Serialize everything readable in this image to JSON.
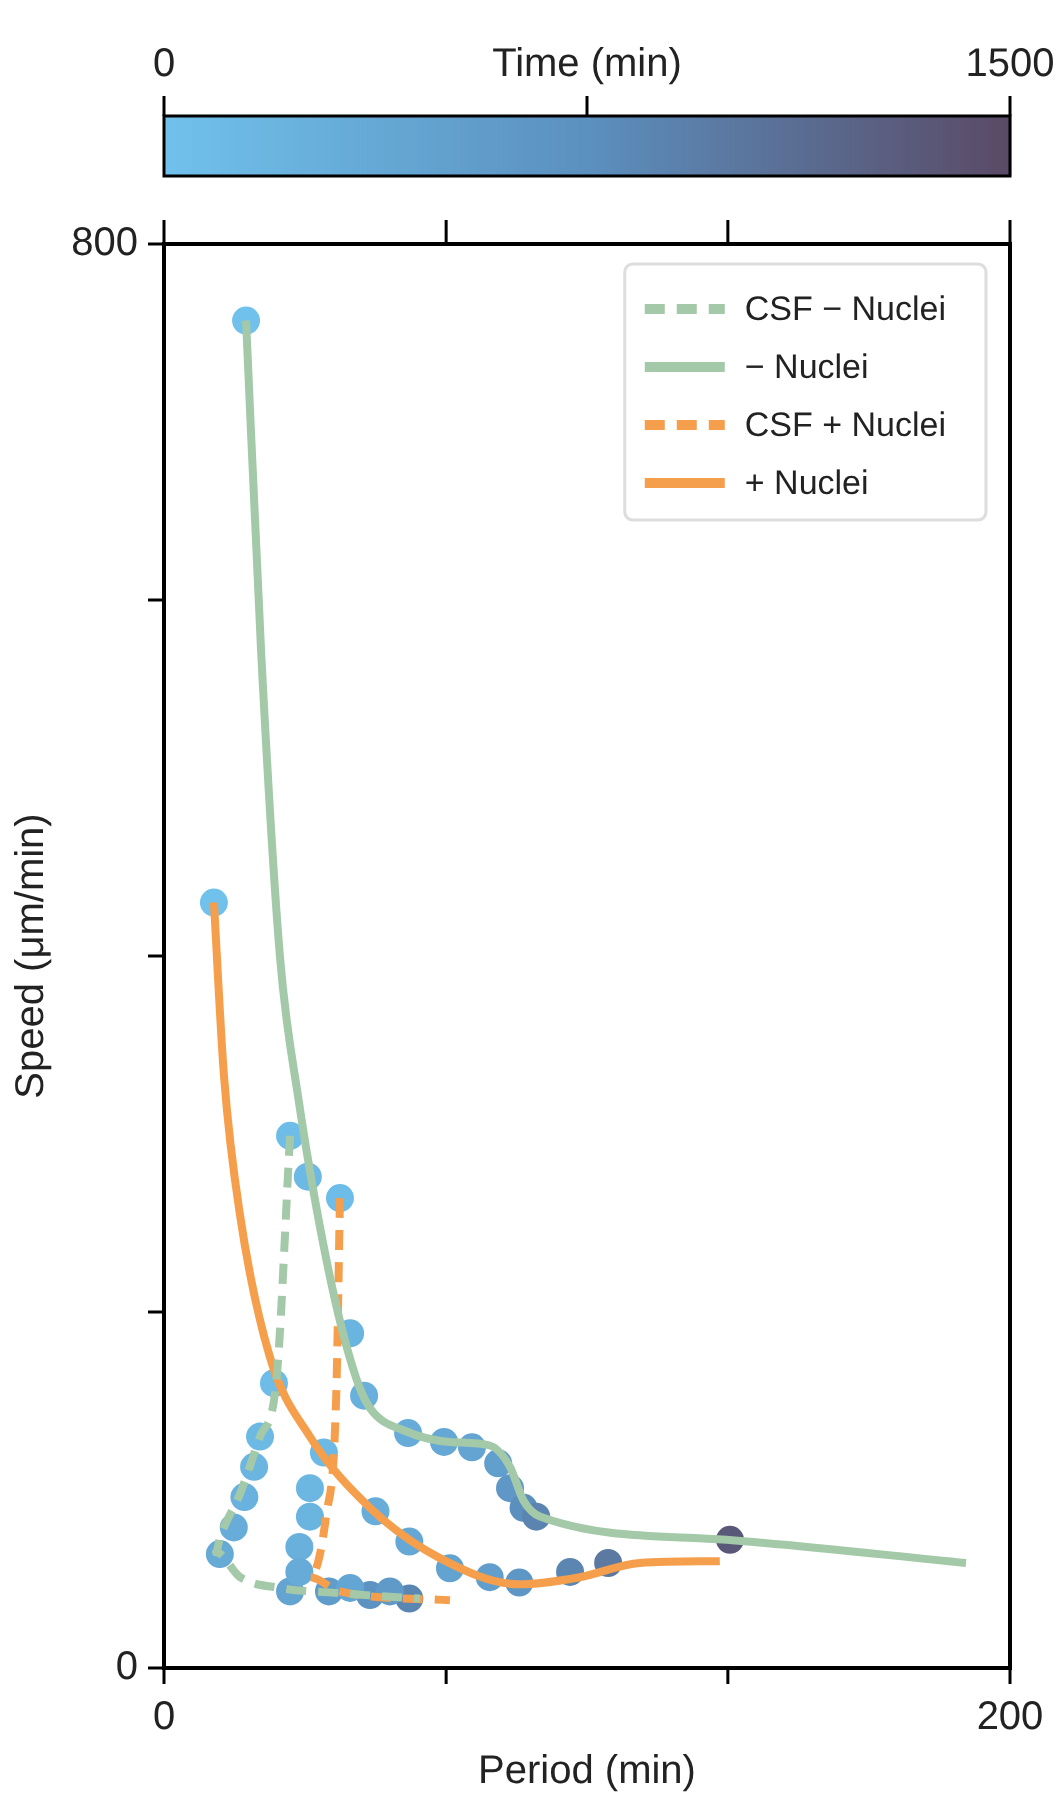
{
  "chart_data": {
    "type": "line",
    "xlabel": "Period (min)",
    "ylabel": "Speed (μm/min)",
    "clabel": "Time (min)",
    "clim": [
      0,
      1500
    ],
    "cticks": [
      0,
      {
        "value": 750,
        "label": null
      },
      1500
    ],
    "xlim": [
      0,
      200
    ],
    "xticks": [
      0,
      {
        "value": 66.7,
        "label": null
      },
      {
        "value": 133.3,
        "label": null
      },
      200
    ],
    "ylim": [
      0,
      800
    ],
    "yticks": [
      0,
      {
        "value": 200,
        "label": null
      },
      {
        "value": 400,
        "label": null
      },
      {
        "value": 600,
        "label": null
      },
      800
    ],
    "grid": false,
    "legend": "top right",
    "series": [
      {
        "type": "scatter",
        "marker": "circle",
        "x": [
          19.4,
          29.8,
          34,
          44,
          47.3,
          57.7,
          66.2,
          72.8,
          79,
          81.8,
          85,
          88,
          133.8,
          26,
          22.7,
          21.3,
          19,
          16.5,
          13.2,
          29.8,
          39,
          48.7,
          58,
          11.8,
          41.6,
          37.8,
          34.5,
          34.5,
          32,
          32,
          50,
          58,
          67.6,
          77,
          84,
          96,
          105,
          44,
          53.4
        ],
        "values": [
          757,
          299,
          276,
          188,
          153,
          132,
          127,
          124,
          115,
          101,
          90,
          85,
          72,
          160,
          130,
          113,
          96,
          79,
          64,
          43,
          43,
          41,
          39,
          430,
          264,
          121,
          101,
          85,
          68,
          54,
          88,
          71,
          56,
          51,
          48,
          54,
          59,
          45,
          43
        ],
        "colors": [
          "#70c1ec",
          "#6ebde8",
          "#6db9e5",
          "#6ab4e0",
          "#69b0dc",
          "#67acd9",
          "#65a8d5",
          "#64a4d2",
          "#619fcd",
          "#5f98c7",
          "#5b8fbe",
          "#5b84b0",
          "#5a5878",
          "#6ebce7",
          "#6cb9e4",
          "#6bb5e1",
          "#69b1de",
          "#68adda",
          "#66aad6",
          "#63a4d1",
          "#609cca",
          "#5c93c2",
          "#5b86b2",
          "#70c1ec",
          "#6ebde8",
          "#6db9e5",
          "#6cb7e2",
          "#6ab4e0",
          "#69b0dc",
          "#67acd9",
          "#68adda",
          "#65a8d5",
          "#63a3d0",
          "#619ecc",
          "#5e97c6",
          "#5b86b2",
          "#5b79a1",
          "#64a6d3",
          "#5f9ac8"
        ],
        "cvalues": [
          0,
          60,
          120,
          200,
          260,
          320,
          380,
          440,
          520,
          620,
          760,
          880,
          1350,
          80,
          130,
          180,
          240,
          300,
          360,
          450,
          560,
          700,
          860,
          0,
          60,
          120,
          160,
          200,
          260,
          320,
          300,
          380,
          460,
          540,
          640,
          860,
          1000,
          420,
          600
        ]
      },
      {
        "name": "CSF − Nuclei",
        "color": "#a3c9a8",
        "line_style": "dashed",
        "x": [
          29.8,
          26.5,
          22.7,
          18,
          13.2,
          12.3,
          18,
          27.4,
          41.6,
          60.5
        ],
        "values": [
          299,
          160,
          130,
          98,
          73,
          65,
          51,
          45,
          42,
          39
        ]
      },
      {
        "name": "− Nuclei",
        "color": "#a3c9a8",
        "line_style": "solid",
        "x": [
          19.4,
          23,
          27.4,
          31.7,
          39.2,
          45.4,
          48.7,
          57.2,
          67.6,
          77,
          81.8,
          85,
          89,
          133,
          189.6
        ],
        "values": [
          757,
          569,
          400,
          321,
          220,
          163,
          146,
          133,
          127,
          125,
          113,
          94,
          85,
          72,
          59
        ]
      },
      {
        "name": "CSF + Nuclei",
        "color": "#f59e4c",
        "line_style": "dashed",
        "x": [
          41.6,
          40.7,
          38.3,
          34.5,
          41.6,
          67.6
        ],
        "values": [
          264,
          152,
          85,
          51,
          43,
          38
        ]
      },
      {
        "name": "+ Nuclei",
        "color": "#f59e4c",
        "line_style": "solid",
        "x": [
          11.8,
          14.2,
          18,
          25,
          34.5,
          48.7,
          65,
          84,
          98.3,
          112.5,
          131.4
        ],
        "values": [
          430,
          332,
          254,
          175,
          130,
          90,
          62,
          47,
          51,
          59,
          60
        ]
      }
    ]
  }
}
